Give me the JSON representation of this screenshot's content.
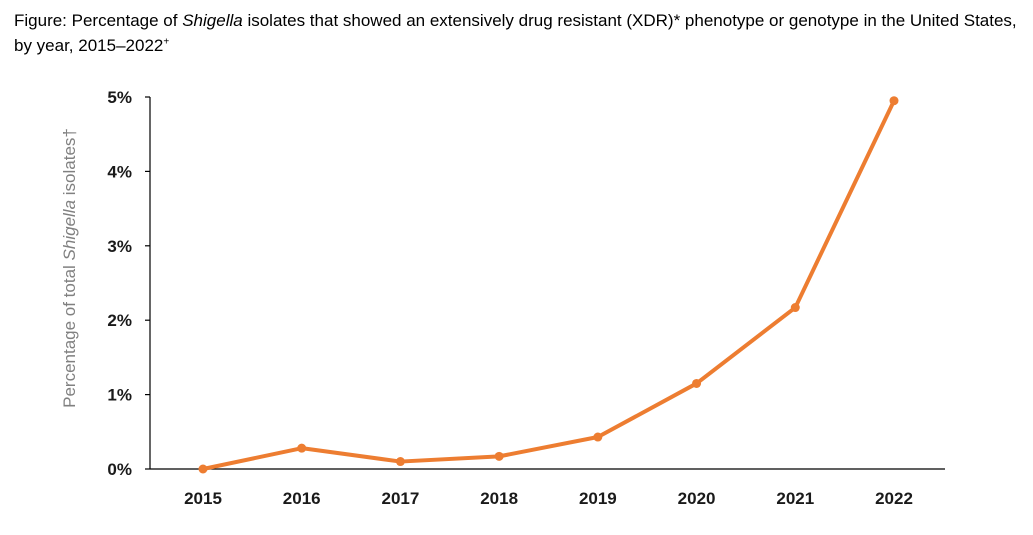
{
  "title": {
    "prefix": "Figure: Percentage of ",
    "italic": "Shigella",
    "suffix": " isolates that showed an extensively drug resistant (XDR)* phenotype or genotype in the United States, by year, 2015–2022",
    "mark": "+"
  },
  "chart_data": {
    "type": "line",
    "title": "Figure: Percentage of Shigella isolates that showed an extensively drug resistant (XDR)* phenotype or genotype in the United States, by year, 2015–2022+",
    "xlabel": "",
    "ylabel": "Percentage of total Shigella isolates†",
    "ylabel_parts": {
      "prefix": "Percentage of total ",
      "italic": "Shigella",
      "suffix": " isolates†"
    },
    "categories": [
      "2015",
      "2016",
      "2017",
      "2018",
      "2019",
      "2020",
      "2021",
      "2022"
    ],
    "series": [
      {
        "color": "#ED7D31",
        "values": [
          0.0,
          0.28,
          0.1,
          0.17,
          0.43,
          1.15,
          2.17,
          4.95
        ]
      }
    ],
    "yticks": [
      "0%",
      "1%",
      "2%",
      "3%",
      "4%",
      "5%"
    ],
    "ylim": [
      0,
      5
    ],
    "grid": false
  }
}
